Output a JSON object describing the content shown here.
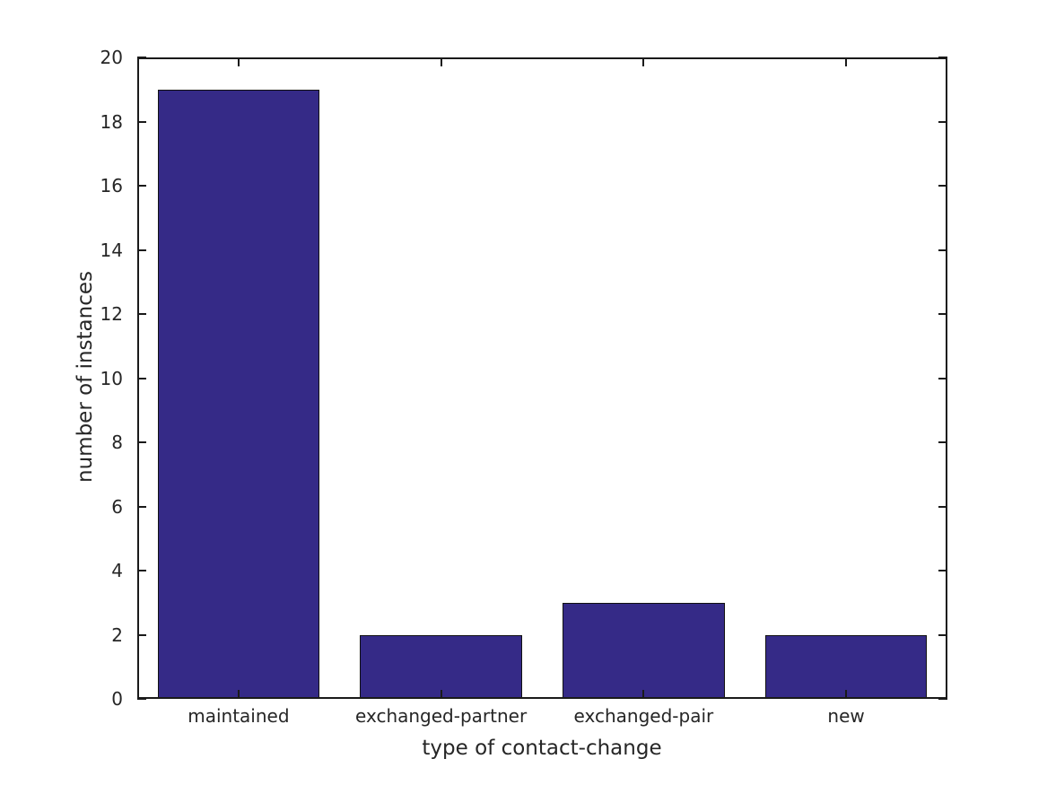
{
  "chart_data": {
    "type": "bar",
    "title": "",
    "categories": [
      "maintained",
      "exchanged-partner",
      "exchanged-pair",
      "new"
    ],
    "values": [
      19,
      2,
      3,
      2
    ],
    "xlabel": "type of contact-change",
    "ylabel": "number of instances",
    "ylim": [
      0,
      20
    ],
    "yticks": [
      0,
      2,
      4,
      6,
      8,
      10,
      12,
      14,
      16,
      18,
      20
    ],
    "bar_width_fraction": 0.8,
    "grid": false,
    "legend": null,
    "tick_direction": "in",
    "box": true,
    "colors": {
      "bar_fill": "#352A87",
      "bar_edge": "#111111",
      "axis_line": "#1a1a1a",
      "text": "#262626",
      "background": "#ffffff"
    }
  }
}
